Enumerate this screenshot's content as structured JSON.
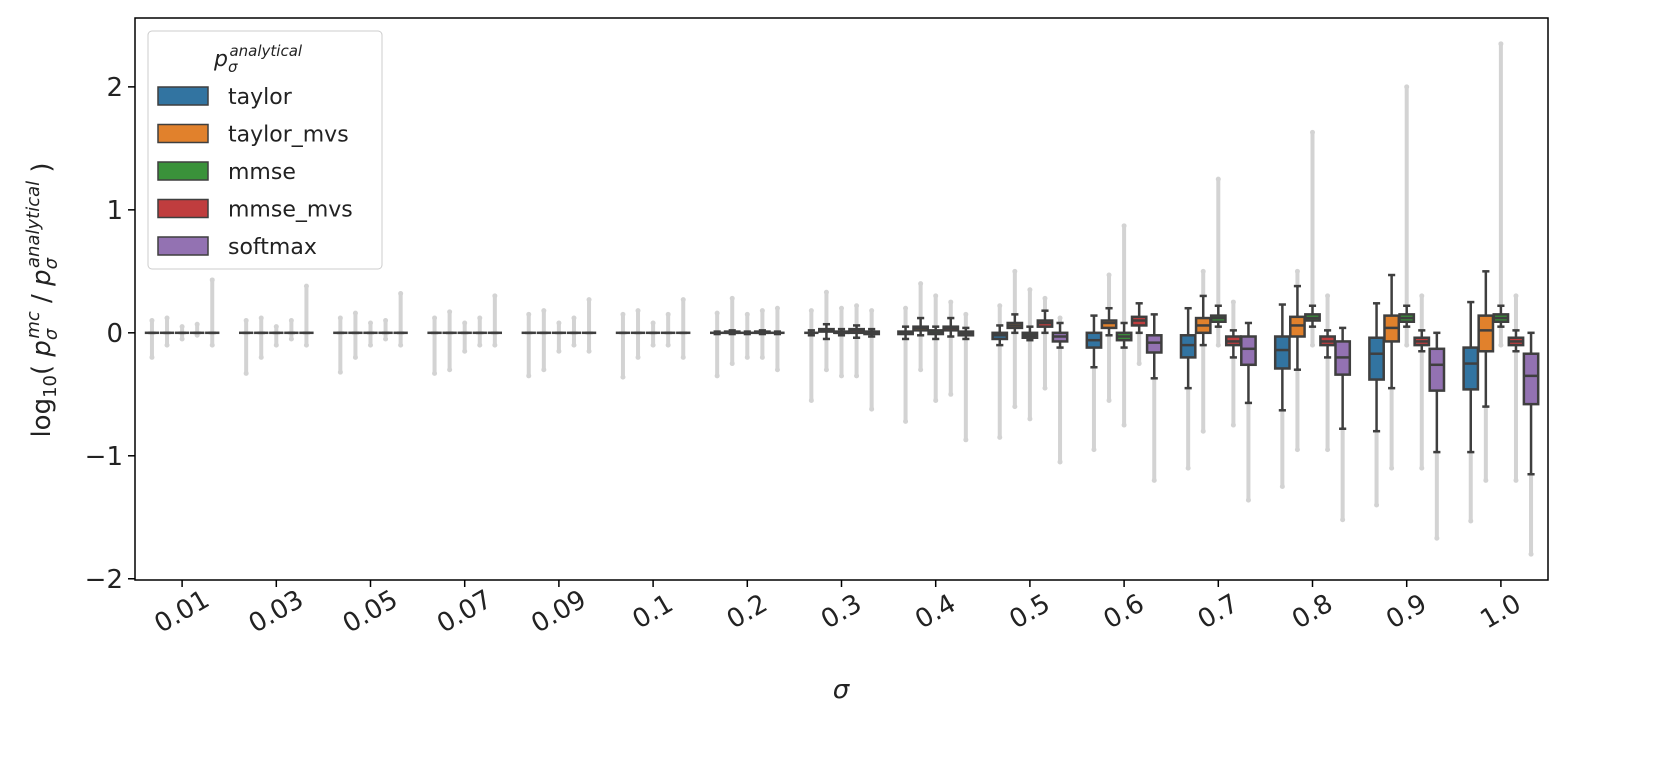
{
  "chart_data": {
    "type": "box",
    "xlabel": "σ",
    "ylabel": {
      "log": "log",
      "base": "10",
      "open": "( ",
      "p1": "p",
      "p1_sub": "σ",
      "p1_sup": "mc",
      "sep": " / ",
      "p2": "p",
      "p2_sub": "σ",
      "p2_sup": "analytical",
      "close": " )"
    },
    "legend_title": {
      "p": "p",
      "sub": "σ",
      "sup": "analytical"
    },
    "legend_position": "upper left",
    "categories": [
      "0.01",
      "0.03",
      "0.05",
      "0.07",
      "0.09",
      "0.1",
      "0.2",
      "0.3",
      "0.4",
      "0.5",
      "0.6",
      "0.7",
      "0.8",
      "0.9",
      "1.0"
    ],
    "ylim": [
      -2.01,
      2.56
    ],
    "yticks": [
      {
        "value": -2,
        "label": "−2"
      },
      {
        "value": -1,
        "label": "−1"
      },
      0,
      1,
      2
    ],
    "series": [
      {
        "name": "taylor",
        "color": "#3274a1",
        "whislo": [
          0,
          0,
          0,
          0,
          0,
          0,
          -0.01,
          -0.02,
          -0.05,
          -0.1,
          -0.28,
          -0.45,
          -0.63,
          -0.8,
          -0.97
        ],
        "q1": [
          0,
          0,
          0,
          0,
          0,
          0,
          0,
          0,
          -0.01,
          -0.05,
          -0.12,
          -0.2,
          -0.29,
          -0.38,
          -0.46
        ],
        "med": [
          0,
          0,
          0,
          0,
          0,
          0,
          0,
          0,
          0,
          -0.02,
          -0.06,
          -0.1,
          -0.14,
          -0.17,
          -0.25
        ],
        "q3": [
          0,
          0,
          0,
          0,
          0,
          0,
          0,
          0,
          0.01,
          0,
          0,
          -0.02,
          -0.03,
          -0.04,
          -0.12
        ],
        "whishi": [
          0,
          0,
          0,
          0,
          0,
          0,
          0.01,
          0.02,
          0.05,
          0.06,
          0.14,
          0.2,
          0.23,
          0.24,
          0.25
        ],
        "flier_low": [
          -0.2,
          -0.33,
          -0.32,
          -0.33,
          -0.35,
          -0.36,
          -0.35,
          -0.55,
          -0.72,
          -0.85,
          -0.95,
          -1.1,
          -1.25,
          -1.4,
          -1.53
        ],
        "flier_high": [
          0.1,
          0.1,
          0.12,
          0.12,
          0.15,
          0.15,
          0.16,
          0.18,
          0.2,
          0.22,
          null,
          null,
          null,
          null,
          null
        ]
      },
      {
        "name": "taylor_mvs",
        "color": "#e1812c",
        "whislo": [
          0,
          0,
          0,
          0,
          0,
          0,
          -0.01,
          -0.05,
          -0.02,
          0,
          -0.02,
          -0.1,
          -0.3,
          -0.45,
          -0.6
        ],
        "q1": [
          0,
          0,
          0,
          0,
          0,
          0,
          0,
          0.01,
          0.02,
          0.04,
          0.04,
          0,
          -0.03,
          -0.07,
          -0.15
        ],
        "med": [
          0,
          0,
          0,
          0,
          0,
          0,
          0,
          0.02,
          0.04,
          0.06,
          0.08,
          0.06,
          0.06,
          0.04,
          0.02
        ],
        "q3": [
          0,
          0,
          0,
          0,
          0,
          0,
          0.01,
          0.03,
          0.05,
          0.08,
          0.1,
          0.12,
          0.13,
          0.14,
          0.14
        ],
        "whishi": [
          0,
          0,
          0,
          0,
          0,
          0,
          0.02,
          0.07,
          0.12,
          0.15,
          0.2,
          0.3,
          0.38,
          0.47,
          0.5
        ],
        "flier_low": [
          -0.1,
          -0.2,
          -0.2,
          -0.3,
          -0.3,
          -0.2,
          -0.25,
          -0.3,
          -0.3,
          -0.6,
          -0.55,
          -0.8,
          -0.95,
          -1.1,
          -1.2
        ],
        "flier_high": [
          0.12,
          0.12,
          0.16,
          0.17,
          0.18,
          0.18,
          0.28,
          0.33,
          0.4,
          0.5,
          0.47,
          0.5,
          0.5,
          null,
          null
        ]
      },
      {
        "name": "mmse",
        "color": "#3a923a",
        "whislo": [
          0,
          0,
          0,
          0,
          0,
          0,
          -0.01,
          -0.02,
          -0.05,
          -0.06,
          -0.12,
          0.05,
          0.05,
          0.05,
          0.05
        ],
        "q1": [
          0,
          0,
          0,
          0,
          0,
          0,
          0,
          0,
          -0.01,
          -0.04,
          -0.06,
          0.09,
          0.1,
          0.09,
          0.09
        ],
        "med": [
          0,
          0,
          0,
          0,
          0,
          0,
          0,
          0,
          0,
          -0.02,
          -0.03,
          0.12,
          0.12,
          0.12,
          0.12
        ],
        "q3": [
          0,
          0,
          0,
          0,
          0,
          0,
          0,
          0.01,
          0.02,
          0,
          0,
          0.14,
          0.15,
          0.15,
          0.15
        ],
        "whishi": [
          0,
          0,
          0,
          0,
          0,
          0,
          0.01,
          0.03,
          0.05,
          0.05,
          0.08,
          0.22,
          0.22,
          0.22,
          0.22
        ],
        "flier_low": [
          -0.05,
          -0.1,
          -0.1,
          -0.15,
          -0.15,
          -0.1,
          -0.2,
          -0.35,
          -0.55,
          -0.7,
          -0.75,
          -0.1,
          -0.1,
          -0.1,
          -0.1
        ],
        "flier_high": [
          0.05,
          0.05,
          0.08,
          0.08,
          0.08,
          0.08,
          0.15,
          0.2,
          0.3,
          0.35,
          0.87,
          1.25,
          1.63,
          2.0,
          2.35
        ]
      },
      {
        "name": "mmse_mvs",
        "color": "#c03d3e",
        "whislo": [
          0,
          0,
          0,
          0,
          0,
          0,
          -0.01,
          -0.04,
          -0.03,
          0,
          0,
          -0.2,
          -0.2,
          -0.15,
          -0.15
        ],
        "q1": [
          0,
          0,
          0,
          0,
          0,
          0,
          0,
          0,
          0.02,
          0.05,
          0.06,
          -0.1,
          -0.1,
          -0.1,
          -0.1
        ],
        "med": [
          0,
          0,
          0,
          0,
          0,
          0,
          0,
          0.02,
          0.04,
          0.08,
          0.1,
          -0.07,
          -0.07,
          -0.07,
          -0.07
        ],
        "q3": [
          0,
          0,
          0,
          0,
          0,
          0,
          0.01,
          0.03,
          0.05,
          0.1,
          0.13,
          -0.03,
          -0.03,
          -0.04,
          -0.04
        ],
        "whishi": [
          0,
          0,
          0,
          0,
          0,
          0,
          0.02,
          0.06,
          0.12,
          0.18,
          0.24,
          0.02,
          0.02,
          0.02,
          0.02
        ],
        "flier_low": [
          -0.02,
          -0.05,
          -0.05,
          -0.1,
          -0.1,
          -0.1,
          -0.2,
          -0.35,
          -0.5,
          -0.45,
          -0.25,
          -0.75,
          -0.95,
          -1.1,
          -1.2
        ],
        "flier_high": [
          0.07,
          0.1,
          0.1,
          0.12,
          0.12,
          0.15,
          0.18,
          0.22,
          0.25,
          0.28,
          null,
          0.25,
          0.3,
          0.3,
          0.3
        ]
      },
      {
        "name": "softmax",
        "color": "#9372b2",
        "whislo": [
          0,
          0,
          0,
          0,
          0,
          0,
          -0.01,
          -0.03,
          -0.05,
          -0.12,
          -0.37,
          -0.57,
          -0.78,
          -0.97,
          -1.15
        ],
        "q1": [
          0,
          0,
          0,
          0,
          0,
          0,
          0,
          -0.01,
          -0.02,
          -0.07,
          -0.16,
          -0.26,
          -0.34,
          -0.47,
          -0.58
        ],
        "med": [
          0,
          0,
          0,
          0,
          0,
          0,
          0,
          0,
          0,
          -0.03,
          -0.08,
          -0.13,
          -0.2,
          -0.26,
          -0.35
        ],
        "q3": [
          0,
          0,
          0,
          0,
          0,
          0,
          0,
          0.01,
          0.01,
          0,
          -0.02,
          -0.03,
          -0.07,
          -0.13,
          -0.17
        ],
        "whishi": [
          0,
          0,
          0,
          0,
          0,
          0,
          0.01,
          0.03,
          0.04,
          0.08,
          0.15,
          0.08,
          0.04,
          0,
          0
        ],
        "flier_low": [
          -0.1,
          -0.1,
          -0.1,
          -0.1,
          -0.15,
          -0.2,
          -0.3,
          -0.62,
          -0.87,
          -1.05,
          -1.2,
          -1.36,
          -1.52,
          -1.67,
          -1.8
        ],
        "flier_high": [
          0.43,
          0.38,
          0.32,
          0.3,
          0.27,
          0.27,
          0.2,
          0.18,
          0.15,
          0.12,
          null,
          null,
          null,
          null,
          null
        ]
      }
    ]
  }
}
